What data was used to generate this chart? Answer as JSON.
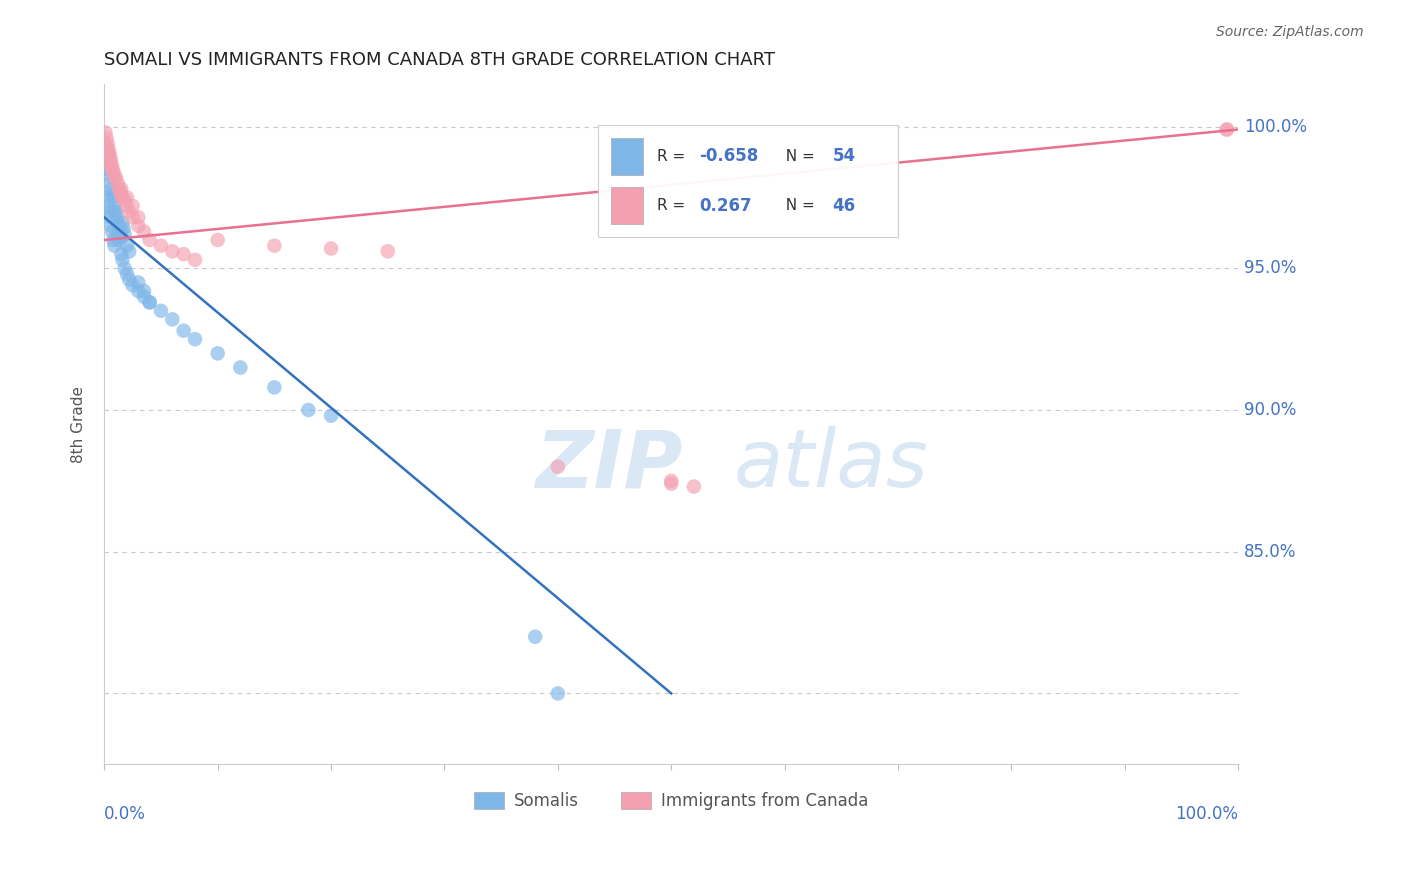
{
  "title": "SOMALI VS IMMIGRANTS FROM CANADA 8TH GRADE CORRELATION CHART",
  "source": "Source: ZipAtlas.com",
  "ylabel": "8th Grade",
  "x_range": [
    0.0,
    1.0
  ],
  "y_range": [
    0.775,
    1.015
  ],
  "somali_color": "#7EB6E8",
  "canada_color": "#F4A0B0",
  "somali_R": -0.658,
  "somali_N": 54,
  "canada_R": 0.267,
  "canada_N": 46,
  "legend_label_somali": "Somalis",
  "legend_label_canada": "Immigrants from Canada",
  "watermark_zip": "ZIP",
  "watermark_atlas": "atlas",
  "grid_color": "#CCCCCC",
  "somali_x": [
    0.001,
    0.002,
    0.003,
    0.004,
    0.005,
    0.006,
    0.007,
    0.008,
    0.009,
    0.01,
    0.011,
    0.012,
    0.013,
    0.014,
    0.015,
    0.016,
    0.017,
    0.018,
    0.02,
    0.022,
    0.002,
    0.003,
    0.004,
    0.005,
    0.006,
    0.007,
    0.008,
    0.009,
    0.01,
    0.012,
    0.013,
    0.015,
    0.016,
    0.018,
    0.02,
    0.022,
    0.025,
    0.03,
    0.035,
    0.04,
    0.05,
    0.06,
    0.07,
    0.08,
    0.1,
    0.12,
    0.15,
    0.18,
    0.2,
    0.03,
    0.035,
    0.04,
    0.38,
    0.4
  ],
  "somali_y": [
    0.99,
    0.988,
    0.985,
    0.983,
    0.98,
    0.978,
    0.976,
    0.975,
    0.972,
    0.97,
    0.968,
    0.966,
    0.965,
    0.963,
    0.961,
    0.966,
    0.964,
    0.962,
    0.958,
    0.956,
    0.975,
    0.972,
    0.97,
    0.968,
    0.965,
    0.963,
    0.96,
    0.958,
    0.97,
    0.962,
    0.96,
    0.955,
    0.953,
    0.95,
    0.948,
    0.946,
    0.944,
    0.942,
    0.94,
    0.938,
    0.935,
    0.932,
    0.928,
    0.925,
    0.92,
    0.915,
    0.908,
    0.9,
    0.898,
    0.945,
    0.942,
    0.938,
    0.82,
    0.8
  ],
  "canada_x": [
    0.001,
    0.002,
    0.003,
    0.004,
    0.005,
    0.006,
    0.007,
    0.008,
    0.01,
    0.012,
    0.013,
    0.014,
    0.015,
    0.016,
    0.018,
    0.02,
    0.022,
    0.025,
    0.03,
    0.035,
    0.04,
    0.05,
    0.06,
    0.07,
    0.08,
    0.002,
    0.003,
    0.004,
    0.005,
    0.006,
    0.008,
    0.01,
    0.015,
    0.02,
    0.025,
    0.03,
    0.1,
    0.15,
    0.2,
    0.25,
    0.4,
    0.5,
    0.5,
    0.52,
    0.99,
    0.99
  ],
  "canada_y": [
    0.998,
    0.996,
    0.994,
    0.992,
    0.99,
    0.988,
    0.986,
    0.984,
    0.982,
    0.98,
    0.978,
    0.977,
    0.976,
    0.975,
    0.974,
    0.972,
    0.97,
    0.968,
    0.965,
    0.963,
    0.96,
    0.958,
    0.956,
    0.955,
    0.953,
    0.993,
    0.991,
    0.99,
    0.988,
    0.986,
    0.984,
    0.982,
    0.978,
    0.975,
    0.972,
    0.968,
    0.96,
    0.958,
    0.957,
    0.956,
    0.88,
    0.875,
    0.874,
    0.873,
    0.999,
    0.999
  ],
  "somali_line_x": [
    0.0,
    0.5
  ],
  "somali_line_y": [
    0.968,
    0.8
  ],
  "canada_line_x": [
    0.0,
    1.0
  ],
  "canada_line_y": [
    0.96,
    0.999
  ]
}
